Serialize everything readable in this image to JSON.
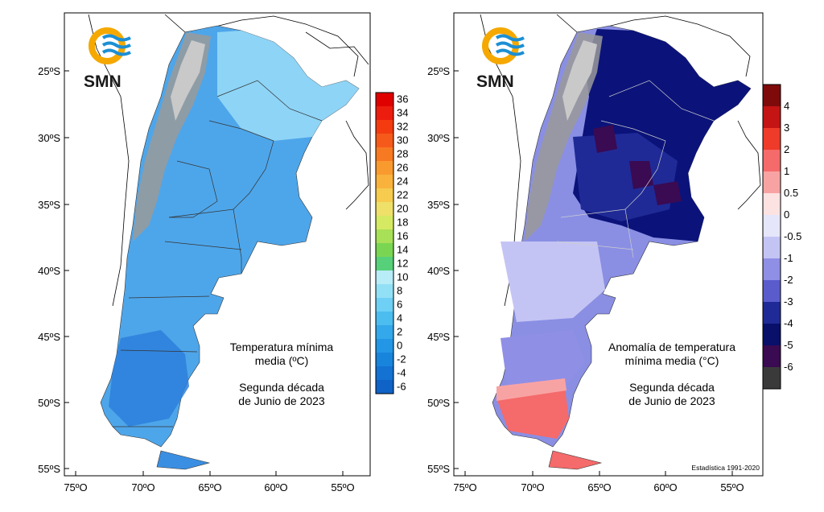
{
  "logo": {
    "text": "SMN",
    "colors": {
      "ring": "#f5a800",
      "waves": "#1b8fd4"
    }
  },
  "axes": {
    "lat_labels": [
      "25ºS",
      "30ºS",
      "35ºS",
      "40ºS",
      "45ºS",
      "50ºS",
      "55ºS"
    ],
    "lon_labels": [
      "75ºO",
      "70ºO",
      "65ºO",
      "60ºO",
      "55ºO"
    ]
  },
  "left_panel": {
    "title_line1": "Temperatura mínima",
    "title_line2": "media (ºC)",
    "period_line1": "Segunda década",
    "period_line2": "de Junio de 2023",
    "colorbar": {
      "labels": [
        "36",
        "34",
        "32",
        "30",
        "28",
        "26",
        "24",
        "22",
        "20",
        "18",
        "16",
        "14",
        "12",
        "10",
        "8",
        "6",
        "4",
        "2",
        "0",
        "-2",
        "-4",
        "-6"
      ],
      "colors": [
        "#e00000",
        "#ec1d0e",
        "#f43b10",
        "#f55a1a",
        "#f77a22",
        "#f99a2f",
        "#f9b23c",
        "#f6cb4e",
        "#efe06a",
        "#d5ea62",
        "#a8e057",
        "#7ad652",
        "#57d07a",
        "#b8ecf7",
        "#92e0f6",
        "#6ed0f4",
        "#4cbdef",
        "#33a8ea",
        "#2396e5",
        "#1984dc",
        "#1472d2",
        "#0f62c6"
      ]
    }
  },
  "right_panel": {
    "title_line1": "Anomalía de temperatura",
    "title_line2": "mínima media (°C)",
    "period_line1": "Segunda década",
    "period_line2": "de Junio de 2023",
    "note": "Estadística 1991-2020",
    "colorbar": {
      "labels": [
        "4",
        "3",
        "2",
        "1",
        "0.5",
        "0",
        "-0.5",
        "-1",
        "-2",
        "-3",
        "-4",
        "-5",
        "-6"
      ],
      "colors": [
        "#7f0a0a",
        "#c41414",
        "#ee3b2a",
        "#f56a6a",
        "#f8a3a3",
        "#fde2e2",
        "#e6e6fb",
        "#c4c4f4",
        "#8f8fe6",
        "#5a5ccc",
        "#1f2a96",
        "#08106a",
        "#3a0a52",
        "#3a3a3a"
      ]
    }
  }
}
